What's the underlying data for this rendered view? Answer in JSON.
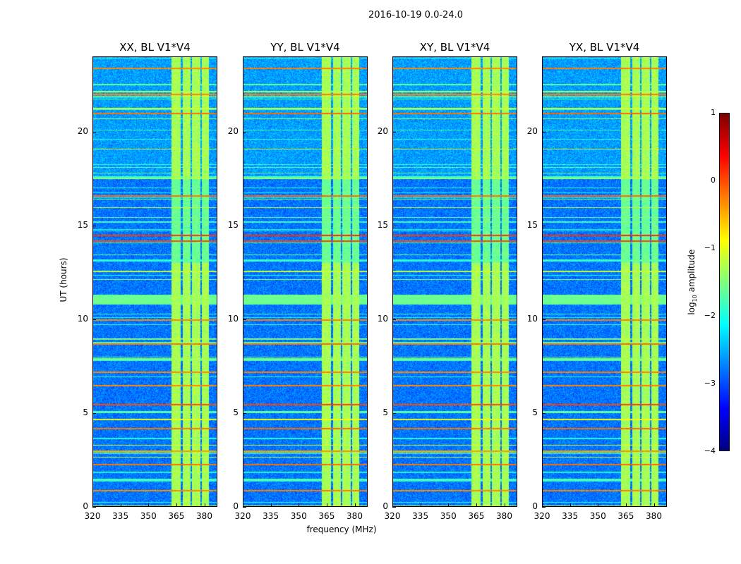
{
  "chart_data": {
    "type": "heatmap",
    "title": "2016-10-19 0.0-24.0",
    "xlabel": "frequency (MHz)",
    "ylabel": "UT (hours)",
    "xlim": [
      320,
      387
    ],
    "ylim": [
      0,
      24
    ],
    "xticks": [
      "320",
      "335",
      "350",
      "365",
      "380"
    ],
    "xtick_values": [
      320,
      335,
      350,
      365,
      380
    ],
    "yticks": [
      "0",
      "5",
      "10",
      "15",
      "20"
    ],
    "ytick_values": [
      0,
      5,
      10,
      15,
      20
    ],
    "colorbar": {
      "label": "log10 amplitude",
      "label_main": "log",
      "label_sub": "10",
      "label_rest": " amplitude",
      "range": [
        -4,
        1
      ],
      "ticks": [
        "−4",
        "−3",
        "−2",
        "−1",
        "0",
        "1"
      ],
      "tick_values": [
        -4,
        -3,
        -2,
        -1,
        0,
        1
      ],
      "colormap": "jet"
    },
    "background_level": -2.8,
    "vertical_bands_mhz": [
      [
        362.3,
        367.2
      ],
      [
        368.3,
        372.5
      ],
      [
        373.2,
        377.7
      ],
      [
        378.5,
        382.3
      ]
    ],
    "band_level": -1.3,
    "horizontal_features": [
      {
        "ut": 0.9,
        "level": -0.3
      },
      {
        "ut": 1.5,
        "level": -1.8
      },
      {
        "ut": 2.3,
        "level": -0.2
      },
      {
        "ut": 3.0,
        "level": -0.4
      },
      {
        "ut": 4.2,
        "level": -0.2
      },
      {
        "ut": 4.7,
        "level": -1.0
      },
      {
        "ut": 5.1,
        "level": -1.7
      },
      {
        "ut": 5.5,
        "level": 0.0
      },
      {
        "ut": 6.5,
        "level": -0.3
      },
      {
        "ut": 7.2,
        "level": -0.3
      },
      {
        "ut": 7.9,
        "level": -1.8
      },
      {
        "ut": 8.7,
        "level": -0.2
      },
      {
        "ut": 10.0,
        "level": -0.3
      },
      {
        "ut": 11.3,
        "level": -1.6
      },
      {
        "ut": 12.6,
        "level": -1.2
      },
      {
        "ut": 13.2,
        "level": -1.9
      },
      {
        "ut": 14.2,
        "level": 0.0
      },
      {
        "ut": 14.5,
        "level": 0.1
      },
      {
        "ut": 16.6,
        "level": -0.2
      },
      {
        "ut": 17.6,
        "level": -1.8
      },
      {
        "ut": 21.0,
        "level": -0.2
      },
      {
        "ut": 22.0,
        "level": -0.3
      },
      {
        "ut": 23.4,
        "level": -0.3
      }
    ],
    "panels": [
      {
        "title": "XX, BL V1*V4"
      },
      {
        "title": "YY, BL V1*V4"
      },
      {
        "title": "XY, BL V1*V4"
      },
      {
        "title": "YX, BL V1*V4"
      }
    ]
  }
}
